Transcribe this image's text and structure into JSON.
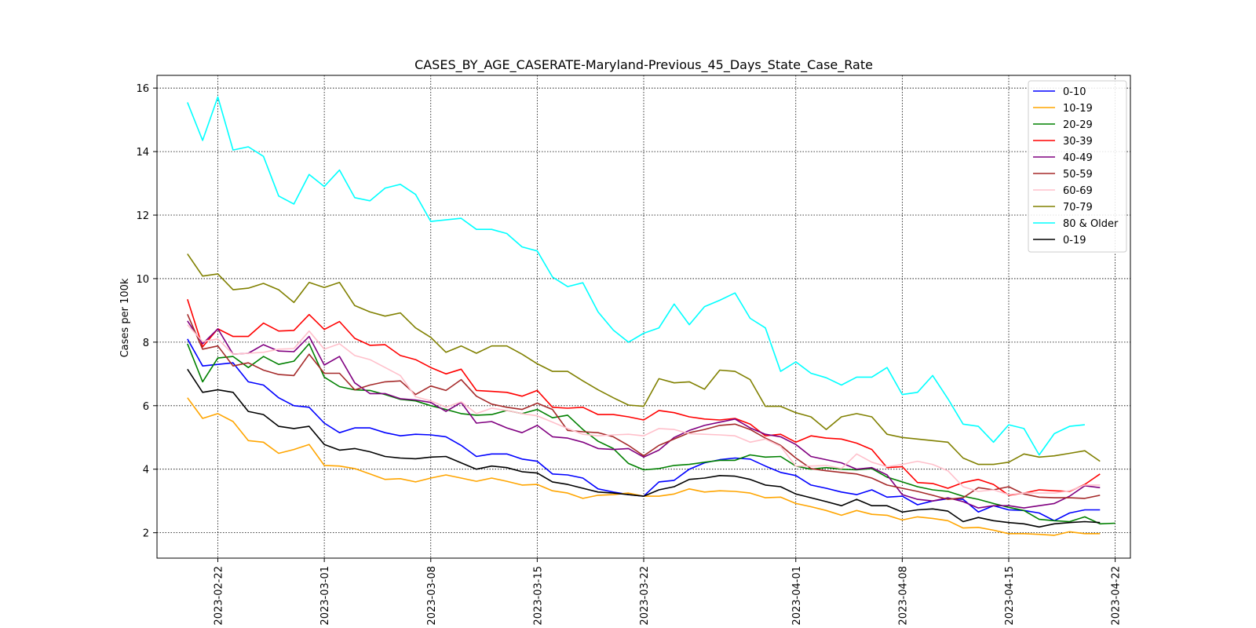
{
  "chart_data": {
    "type": "line",
    "title": "CASES_BY_AGE_CASERATE-Maryland-Previous_45_Days_State_Case_Rate",
    "xlabel": "",
    "ylabel": "Cases per 100k",
    "start_date": "2023-02-20",
    "x_ticks": [
      "2023-02-22",
      "2023-03-01",
      "2023-03-08",
      "2023-03-15",
      "2023-03-22",
      "2023-04-01",
      "2023-04-08",
      "2023-04-15",
      "2023-04-22"
    ],
    "y_ticks": [
      2,
      4,
      6,
      8,
      10,
      12,
      14,
      16
    ],
    "xlim": [
      "2023-02-18",
      "2023-04-23"
    ],
    "ylim": [
      1.2,
      16.4
    ],
    "grid": true,
    "legend_position": "top-right",
    "series": [
      {
        "name": "0-10",
        "color": "#0000ff",
        "values": [
          8.1,
          7.25,
          7.3,
          7.35,
          6.75,
          6.65,
          6.25,
          6.0,
          5.95,
          5.45,
          5.15,
          5.3,
          5.3,
          5.15,
          5.05,
          5.1,
          5.08,
          5.02,
          4.75,
          4.4,
          4.48,
          4.48,
          4.32,
          4.25,
          3.85,
          3.82,
          3.72,
          3.38,
          3.28,
          3.2,
          3.15,
          3.6,
          3.65,
          4.0,
          4.2,
          4.3,
          4.35,
          4.32,
          4.1,
          3.9,
          3.8,
          3.5,
          3.4,
          3.28,
          3.2,
          3.35,
          3.12,
          3.15,
          2.88,
          3.0,
          3.07,
          3.05,
          2.65,
          2.85,
          2.72,
          2.7,
          2.62,
          2.38,
          2.62,
          2.72,
          2.72
        ]
      },
      {
        "name": "10-19",
        "color": "#ffa500",
        "values": [
          6.25,
          5.6,
          5.75,
          5.5,
          4.9,
          4.85,
          4.5,
          4.62,
          4.78,
          4.12,
          4.1,
          4.02,
          3.85,
          3.68,
          3.7,
          3.6,
          3.72,
          3.82,
          3.72,
          3.62,
          3.72,
          3.62,
          3.5,
          3.52,
          3.32,
          3.25,
          3.08,
          3.18,
          3.2,
          3.25,
          3.15,
          3.15,
          3.22,
          3.38,
          3.28,
          3.32,
          3.3,
          3.25,
          3.1,
          3.12,
          2.92,
          2.82,
          2.7,
          2.55,
          2.7,
          2.58,
          2.55,
          2.4,
          2.5,
          2.45,
          2.38,
          2.15,
          2.17,
          2.08,
          1.97,
          1.97,
          1.95,
          1.92,
          2.03,
          1.97,
          1.97
        ]
      },
      {
        "name": "20-29",
        "color": "#008000",
        "values": [
          7.95,
          6.75,
          7.5,
          7.55,
          7.2,
          7.55,
          7.3,
          7.4,
          7.95,
          6.9,
          6.6,
          6.5,
          6.48,
          6.35,
          6.2,
          6.15,
          6.0,
          5.88,
          5.75,
          5.7,
          5.72,
          5.85,
          5.75,
          5.88,
          5.62,
          5.7,
          5.25,
          4.88,
          4.65,
          4.18,
          3.98,
          4.02,
          4.12,
          4.15,
          4.22,
          4.28,
          4.28,
          4.45,
          4.38,
          4.4,
          4.1,
          4.0,
          4.05,
          4.0,
          3.98,
          4.02,
          3.75,
          3.6,
          3.45,
          3.35,
          3.3,
          3.15,
          3.05,
          2.92,
          2.8,
          2.7,
          2.42,
          2.38,
          2.35,
          2.5,
          2.28,
          2.3
        ]
      },
      {
        "name": "30-39",
        "color": "#ff0000",
        "values": [
          9.35,
          7.85,
          8.42,
          8.18,
          8.18,
          8.6,
          8.35,
          8.37,
          8.87,
          8.4,
          8.65,
          8.12,
          7.9,
          7.92,
          7.58,
          7.45,
          7.2,
          7.0,
          7.15,
          6.48,
          6.45,
          6.42,
          6.3,
          6.48,
          5.95,
          5.92,
          5.95,
          5.72,
          5.72,
          5.65,
          5.55,
          5.85,
          5.78,
          5.65,
          5.58,
          5.55,
          5.6,
          5.42,
          5.05,
          5.1,
          4.85,
          5.05,
          4.98,
          4.95,
          4.82,
          4.62,
          4.05,
          4.08,
          3.58,
          3.55,
          3.4,
          3.58,
          3.68,
          3.52,
          3.18,
          3.25,
          3.35,
          3.32,
          3.3,
          3.52,
          3.85
        ]
      },
      {
        "name": "40-49",
        "color": "#800080",
        "values": [
          8.67,
          7.95,
          8.42,
          7.62,
          7.65,
          7.92,
          7.72,
          7.7,
          8.18,
          7.28,
          7.55,
          6.72,
          6.38,
          6.38,
          6.22,
          6.18,
          6.1,
          5.82,
          6.1,
          5.45,
          5.5,
          5.3,
          5.15,
          5.38,
          5.02,
          4.98,
          4.85,
          4.65,
          4.62,
          4.65,
          4.38,
          4.6,
          5.0,
          5.22,
          5.38,
          5.48,
          5.58,
          5.3,
          5.1,
          5.02,
          4.78,
          4.4,
          4.3,
          4.2,
          4.0,
          4.05,
          3.82,
          3.2,
          3.05,
          3.0,
          3.1,
          2.98,
          2.78,
          2.85,
          2.85,
          2.78,
          2.85,
          2.92,
          3.15,
          3.48,
          3.42
        ]
      },
      {
        "name": "50-59",
        "color": "#a52a2a",
        "values": [
          8.88,
          7.78,
          7.88,
          7.25,
          7.35,
          7.12,
          6.98,
          6.95,
          7.62,
          7.02,
          7.02,
          6.5,
          6.65,
          6.75,
          6.78,
          6.35,
          6.62,
          6.48,
          6.82,
          6.3,
          6.05,
          5.95,
          5.88,
          6.08,
          5.88,
          5.22,
          5.18,
          5.15,
          5.02,
          4.75,
          4.42,
          4.75,
          4.95,
          5.15,
          5.25,
          5.38,
          5.42,
          5.25,
          4.98,
          4.75,
          4.35,
          4.02,
          3.95,
          3.9,
          3.85,
          3.72,
          3.5,
          3.4,
          3.3,
          3.18,
          3.05,
          3.1,
          3.42,
          3.35,
          3.45,
          3.22,
          3.12,
          3.1,
          3.1,
          3.08,
          3.18
        ]
      },
      {
        "name": "60-69",
        "color": "#ffc0cb",
        "values": [
          8.55,
          8.02,
          8.1,
          7.62,
          7.65,
          7.68,
          7.78,
          7.8,
          8.35,
          7.78,
          7.95,
          7.58,
          7.45,
          7.2,
          6.95,
          6.28,
          6.15,
          5.95,
          6.12,
          5.75,
          5.92,
          5.85,
          5.75,
          5.68,
          5.48,
          5.28,
          5.1,
          5.05,
          5.08,
          5.1,
          5.05,
          5.28,
          5.25,
          5.12,
          5.1,
          5.08,
          5.05,
          4.85,
          4.95,
          4.72,
          4.1,
          4.1,
          4.12,
          4.02,
          4.48,
          4.22,
          4.08,
          4.15,
          4.25,
          4.15,
          3.95,
          3.45,
          3.3,
          3.35,
          3.2,
          3.25,
          3.25,
          3.25,
          3.32,
          3.5,
          3.5
        ]
      },
      {
        "name": "70-79",
        "color": "#808000",
        "values": [
          10.78,
          10.08,
          10.15,
          9.65,
          9.7,
          9.85,
          9.65,
          9.25,
          9.88,
          9.72,
          9.88,
          9.15,
          8.95,
          8.82,
          8.92,
          8.45,
          8.15,
          7.68,
          7.88,
          7.65,
          7.88,
          7.88,
          7.62,
          7.32,
          7.08,
          7.08,
          6.78,
          6.5,
          6.25,
          6.02,
          5.98,
          6.85,
          6.72,
          6.75,
          6.52,
          7.12,
          7.08,
          6.82,
          5.98,
          5.98,
          5.78,
          5.65,
          5.25,
          5.65,
          5.75,
          5.65,
          5.1,
          5.0,
          4.95,
          4.9,
          4.85,
          4.35,
          4.15,
          4.15,
          4.22,
          4.48,
          4.38,
          4.42,
          4.5,
          4.58,
          4.25
        ]
      },
      {
        "name": "80 & Older",
        "color": "#00ffff",
        "values": [
          15.55,
          14.35,
          15.72,
          14.05,
          14.15,
          13.85,
          12.6,
          12.35,
          13.28,
          12.9,
          13.42,
          12.55,
          12.45,
          12.85,
          12.97,
          12.65,
          11.8,
          11.85,
          11.9,
          11.55,
          11.55,
          11.42,
          11.0,
          10.87,
          10.05,
          9.75,
          9.87,
          8.95,
          8.38,
          8.0,
          8.28,
          8.45,
          9.2,
          8.55,
          9.12,
          9.32,
          9.55,
          8.75,
          8.45,
          7.08,
          7.38,
          7.02,
          6.88,
          6.65,
          6.9,
          6.9,
          7.2,
          6.35,
          6.42,
          6.95,
          6.22,
          5.42,
          5.35,
          4.85,
          5.4,
          5.28,
          4.45,
          5.12,
          5.35,
          5.4
        ]
      },
      {
        "name": "0-19",
        "color": "#000000",
        "values": [
          7.15,
          6.42,
          6.5,
          6.42,
          5.82,
          5.72,
          5.35,
          5.28,
          5.35,
          4.78,
          4.6,
          4.65,
          4.55,
          4.4,
          4.35,
          4.33,
          4.38,
          4.4,
          4.2,
          4.0,
          4.1,
          4.05,
          3.92,
          3.88,
          3.6,
          3.52,
          3.4,
          3.28,
          3.25,
          3.2,
          3.15,
          3.35,
          3.45,
          3.68,
          3.72,
          3.8,
          3.78,
          3.68,
          3.5,
          3.45,
          3.22,
          3.1,
          2.98,
          2.85,
          3.05,
          2.85,
          2.85,
          2.65,
          2.72,
          2.75,
          2.68,
          2.35,
          2.48,
          2.38,
          2.32,
          2.28,
          2.18,
          2.28,
          2.32,
          2.35,
          2.32
        ]
      }
    ]
  }
}
